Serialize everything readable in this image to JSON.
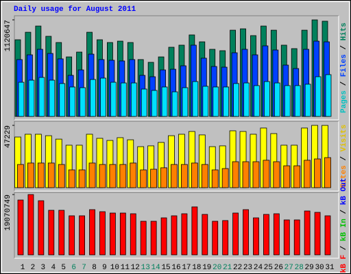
{
  "chart_data": [
    {
      "type": "bar",
      "title": "Daily usage for August 2011",
      "title_color": "#0000ff",
      "ylim": [
        0,
        1120647
      ],
      "yticks": [
        1120647
      ],
      "series": [
        {
          "name": "Pages",
          "color": "#00e0ff",
          "label_color": "#00c0c0",
          "values": [
            397000,
            421000,
            453000,
            421000,
            382000,
            342000,
            334000,
            429000,
            445000,
            397000,
            389000,
            389000,
            318000,
            302000,
            342000,
            286000,
            334000,
            405000,
            350000,
            342000,
            342000,
            382000,
            389000,
            358000,
            405000,
            389000,
            358000,
            358000,
            374000,
            461000,
            485000
          ]
        },
        {
          "name": "Files",
          "color": "#0040ff",
          "label_color": "#0040ff",
          "values": [
            660000,
            715000,
            779000,
            731000,
            668000,
            477000,
            540000,
            723000,
            660000,
            652000,
            644000,
            660000,
            477000,
            461000,
            540000,
            548000,
            588000,
            827000,
            676000,
            580000,
            572000,
            739000,
            779000,
            715000,
            819000,
            771000,
            596000,
            556000,
            779000,
            874000,
            866000
          ]
        },
        {
          "name": "Hits",
          "color": "#00805c",
          "label_color": "#00805c",
          "values": [
            890000,
            977000,
            1049000,
            930000,
            858000,
            691000,
            747000,
            977000,
            890000,
            858000,
            874000,
            858000,
            660000,
            628000,
            691000,
            803000,
            827000,
            946000,
            866000,
            779000,
            763000,
            1001000,
            1017000,
            938000,
            1049000,
            1001000,
            827000,
            787000,
            1001000,
            1120647,
            1105000
          ]
        }
      ]
    },
    {
      "type": "bar",
      "ylim": [
        0,
        47229
      ],
      "yticks": [
        47229
      ],
      "series": [
        {
          "name": "Sites",
          "color": "#ff8000",
          "label_color": "#ff8000",
          "values": [
            17600,
            18700,
            18700,
            18700,
            17600,
            13500,
            13500,
            18700,
            17600,
            17600,
            17600,
            18700,
            13500,
            14000,
            15100,
            17600,
            17600,
            18700,
            17600,
            13500,
            14500,
            19700,
            19700,
            19700,
            20800,
            19700,
            16600,
            16600,
            20800,
            21800,
            22800
          ]
        },
        {
          "name": "Visits",
          "color": "#ffff00",
          "label_color": "#e0c000",
          "values": [
            38400,
            40500,
            40500,
            39400,
            36800,
            32200,
            32200,
            40500,
            37400,
            35800,
            37900,
            36300,
            31100,
            31700,
            34300,
            39400,
            40500,
            42600,
            40000,
            31100,
            31700,
            43100,
            42600,
            40500,
            45200,
            41000,
            32200,
            32200,
            45200,
            47229,
            47200
          ]
        }
      ]
    },
    {
      "type": "bar",
      "ylim": [
        0,
        19070749
      ],
      "yticks": [
        19070749
      ],
      "categories": [
        "1",
        "2",
        "3",
        "4",
        "5",
        "6",
        "7",
        "8",
        "9",
        "10",
        "11",
        "12",
        "13",
        "14",
        "15",
        "16",
        "17",
        "18",
        "19",
        "20",
        "21",
        "22",
        "23",
        "24",
        "25",
        "26",
        "27",
        "28",
        "29",
        "30",
        "31"
      ],
      "label_colors": [
        "#000000",
        "#000000",
        "#000000",
        "#000000",
        "#000000",
        "#00805c",
        "#00805c",
        "#000000",
        "#000000",
        "#000000",
        "#000000",
        "#000000",
        "#00805c",
        "#00805c",
        "#000000",
        "#000000",
        "#000000",
        "#000000",
        "#000000",
        "#00805c",
        "#00805c",
        "#000000",
        "#000000",
        "#000000",
        "#000000",
        "#000000",
        "#00805c",
        "#00805c",
        "#000000",
        "#000000",
        "#000000"
      ],
      "series": [
        {
          "name": "kB F",
          "color": "#ff0000",
          "label_color": "#ff0000",
          "values": [
            17340000,
            19070749,
            17120000,
            14090000,
            14090000,
            12350000,
            12350000,
            14300000,
            13650000,
            13220000,
            13220000,
            13000000,
            10620000,
            10620000,
            11700000,
            12350000,
            13000000,
            15170000,
            12790000,
            10620000,
            10840000,
            13220000,
            14300000,
            11700000,
            12790000,
            13000000,
            11050000,
            11050000,
            13870000,
            13440000,
            12350000
          ]
        },
        {
          "name": "kB In",
          "color": "#00c000",
          "label_color": "#00c000"
        },
        {
          "name": "kB Out",
          "color": "#0000ff",
          "label_color": "#0000ff"
        }
      ]
    }
  ],
  "legend_separator": " / "
}
